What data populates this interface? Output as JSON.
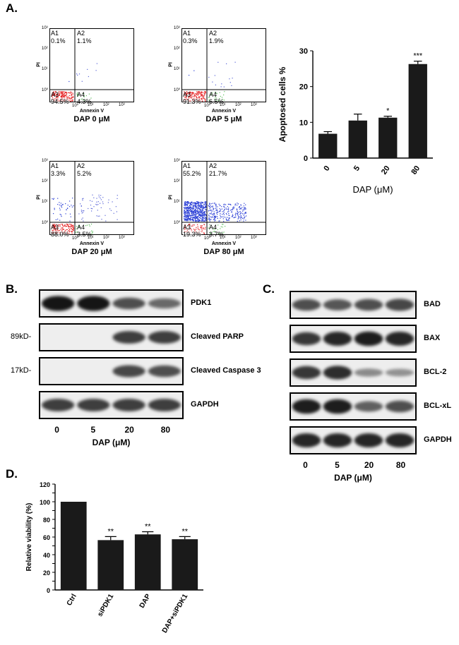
{
  "panels": {
    "a": "A.",
    "b": "B.",
    "c": "C.",
    "d": "D."
  },
  "flow": [
    {
      "caption": "DAP  0 μM",
      "q": {
        "A1": "0.1%",
        "A2": "1.1%",
        "A3": "94.5%",
        "A4": "4.3%"
      }
    },
    {
      "caption": "DAP 5 μM",
      "q": {
        "A1": "0.3%",
        "A2": "1.9%",
        "A3": "91.3%",
        "A4": "6.5%"
      }
    },
    {
      "caption": "DAP 20 μM",
      "q": {
        "A1": "3.3%",
        "A2": "5.2%",
        "A3": "88.0%",
        "A4": "3.5%"
      }
    },
    {
      "caption": "DAP 80 μM",
      "q": {
        "A1": "55.2%",
        "A2": "21.7%",
        "A3": "19.3%",
        "A4": "3.7%"
      }
    }
  ],
  "flow_axis": {
    "x": "Annexin V",
    "y": "PI",
    "yticks": [
      "10³",
      "10²",
      "10¹",
      "10⁰"
    ],
    "xticks": [
      "10⁰",
      "10¹",
      "10²",
      "10³"
    ],
    "quad": [
      "A1",
      "A2",
      "A3",
      "A4"
    ]
  },
  "chart_data": [
    {
      "type": "bar",
      "categories": [
        "0",
        "5",
        "20",
        "80"
      ],
      "values": [
        6.8,
        10.5,
        11.3,
        26.3
      ],
      "errors": [
        0.6,
        1.8,
        0.4,
        0.8
      ],
      "significance": [
        "",
        "",
        "*",
        "***"
      ],
      "ylabel": "Apoptosed cells %",
      "xlabel": "DAP (μM)",
      "ylim": [
        0,
        30
      ],
      "yticks": [
        0,
        10,
        20,
        30
      ],
      "bar_color": "#1a1a1a"
    },
    {
      "type": "bar",
      "categories": [
        "Ctrl",
        "siPDK1",
        "DAP",
        "DAP+siPDK1"
      ],
      "values": [
        100,
        56.5,
        63,
        57.5
      ],
      "errors": [
        0,
        4,
        3,
        3
      ],
      "significance": [
        "",
        "**",
        "**",
        "**"
      ],
      "ylabel": "Relative viability (%)",
      "ylim": [
        0,
        120
      ],
      "yticks": [
        0,
        10,
        20,
        30,
        40,
        50,
        60,
        70,
        80,
        90,
        100,
        110,
        120
      ],
      "ytick_labels": [
        0,
        20,
        40,
        60,
        80,
        100,
        120
      ],
      "bar_color": "#1a1a1a"
    }
  ],
  "blot_b": {
    "rows": [
      {
        "label": "PDK1",
        "kd": "",
        "bands": [
          0.95,
          0.95,
          0.6,
          0.45
        ]
      },
      {
        "label": "Cleaved PARP",
        "kd": "89kD-",
        "bands": [
          0,
          0,
          0.7,
          0.7
        ]
      },
      {
        "label": "Cleaved Caspase 3",
        "kd": "17kD-",
        "bands": [
          0,
          0,
          0.65,
          0.6
        ]
      },
      {
        "label": "GAPDH",
        "kd": "",
        "bands": [
          0.7,
          0.7,
          0.7,
          0.7
        ]
      }
    ],
    "lanes": [
      "0",
      "5",
      "20",
      "80"
    ],
    "xlabel": "DAP (μM)"
  },
  "blot_c": {
    "rows": [
      {
        "label": "BAD",
        "bands": [
          0.6,
          0.55,
          0.6,
          0.65
        ]
      },
      {
        "label": "BAX",
        "bands": [
          0.75,
          0.85,
          0.9,
          0.85
        ]
      },
      {
        "label": "BCL-2",
        "bands": [
          0.75,
          0.8,
          0.25,
          0.2
        ]
      },
      {
        "label": "BCL-xL",
        "bands": [
          0.9,
          0.9,
          0.5,
          0.6
        ]
      },
      {
        "label": "GAPDH",
        "bands": [
          0.85,
          0.85,
          0.85,
          0.85
        ]
      }
    ],
    "lanes": [
      "0",
      "5",
      "20",
      "80"
    ],
    "xlabel": "DAP (μM)"
  }
}
